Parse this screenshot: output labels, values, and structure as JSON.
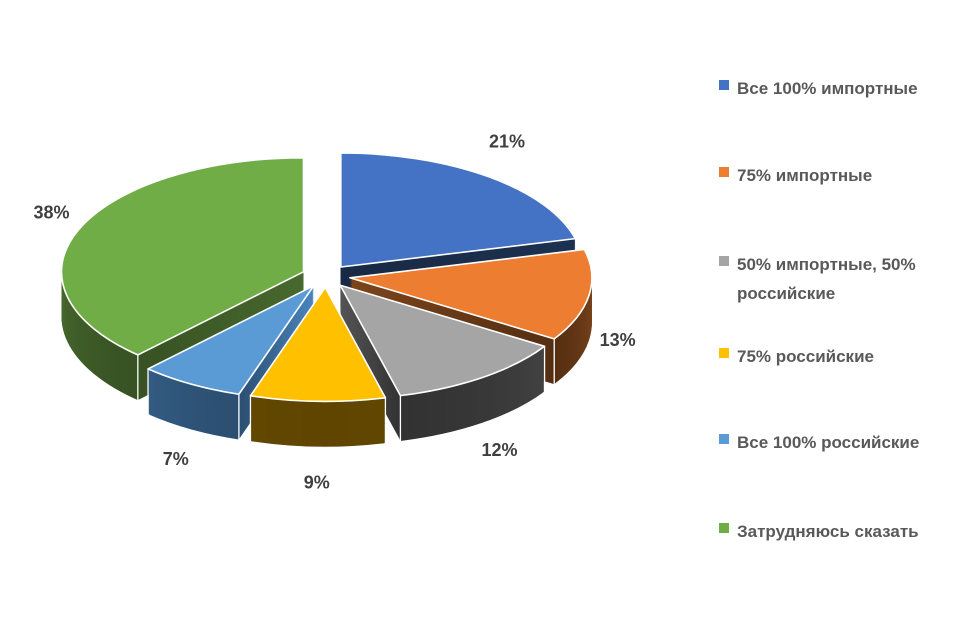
{
  "chart_data": {
    "type": "pie",
    "style": "3d-exploded-pie",
    "title": "",
    "categories": [
      "Все 100% импортные",
      "75% импортные",
      "50% импортные, 50% российские",
      "75% российские",
      "Все 100% российские",
      "Затрудняюсь сказать"
    ],
    "values": [
      21,
      13,
      12,
      9,
      7,
      38
    ],
    "data_labels": [
      "21%",
      "13%",
      "12%",
      "9%",
      "7%",
      "38%"
    ],
    "colors": [
      "#4472C4",
      "#ED7D31",
      "#A5A5A5",
      "#FFC000",
      "#5B9BD5",
      "#70AD47"
    ],
    "side_colors": [
      "#22395F",
      "#744019",
      "#454545",
      "#846000",
      "#3C6C9C",
      "#4C7031"
    ],
    "start_angle_deg": 0,
    "direction": "clockwise",
    "legend_position": "right",
    "background": "#FFFFFF",
    "label_color": "#3F3F3F",
    "legend_text_color": "#595959"
  }
}
